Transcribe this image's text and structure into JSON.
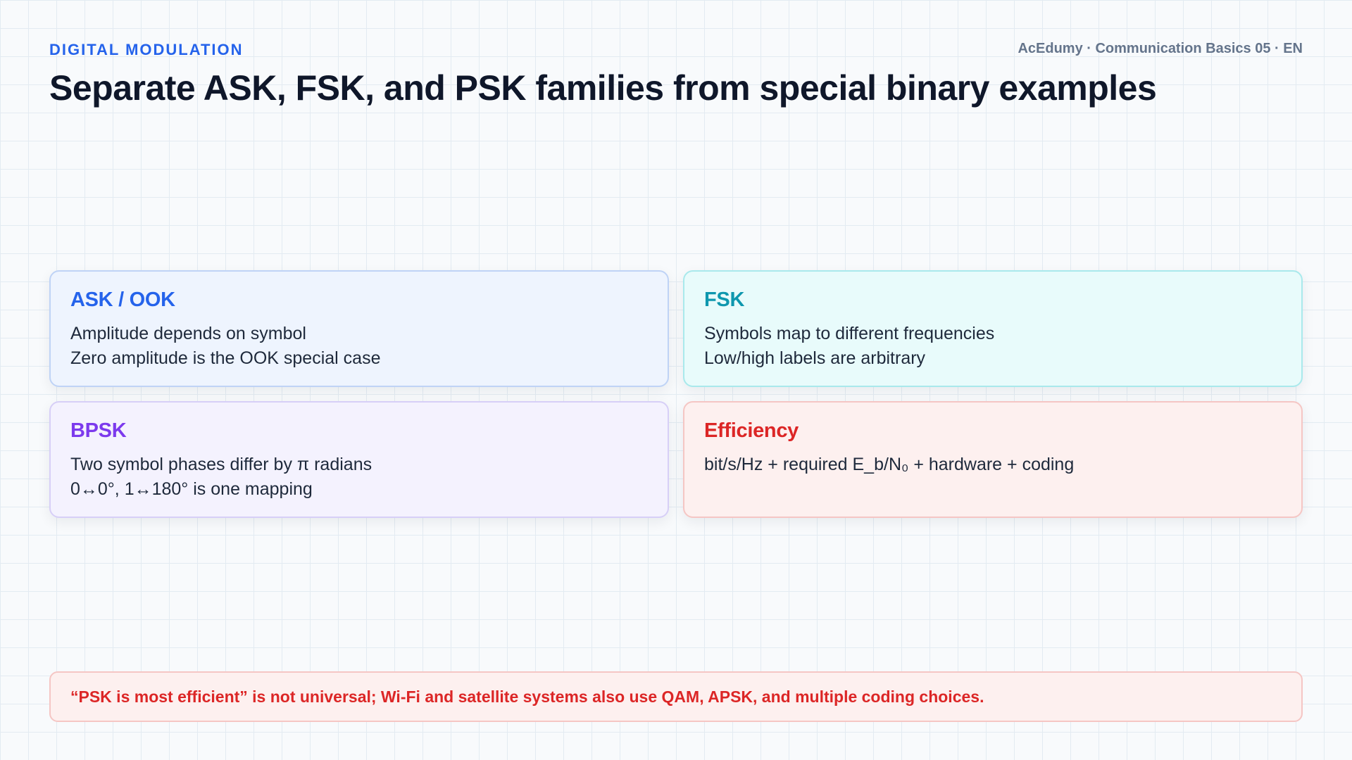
{
  "header": {
    "kicker": "DIGITAL MODULATION",
    "meta": "AcEdumy · Communication Basics 05 · EN",
    "title": "Separate ASK, FSK, and PSK families from special binary examples"
  },
  "cards": [
    {
      "title": "ASK / OOK",
      "lines": [
        "Amplitude depends on symbol",
        "Zero amplitude is the OOK special case"
      ],
      "accent": "#2563eb"
    },
    {
      "title": "FSK",
      "lines": [
        "Symbols map to different frequencies",
        "Low/high labels are arbitrary"
      ],
      "accent": "#0e97ae"
    },
    {
      "title": "BPSK",
      "lines": [
        "Two symbol phases differ by π radians",
        "0↔0°, 1↔180° is one mapping"
      ],
      "accent": "#7c3aed"
    },
    {
      "title": "Efficiency",
      "lines": [
        "bit/s/Hz + required E_b/N₀ + hardware + coding"
      ],
      "accent": "#dc2626"
    }
  ],
  "note": {
    "text": "“PSK is most efficient” is not universal; Wi-Fi and satellite systems also use QAM, APSK, and multiple coding choices.",
    "accent": "#dc2626"
  }
}
